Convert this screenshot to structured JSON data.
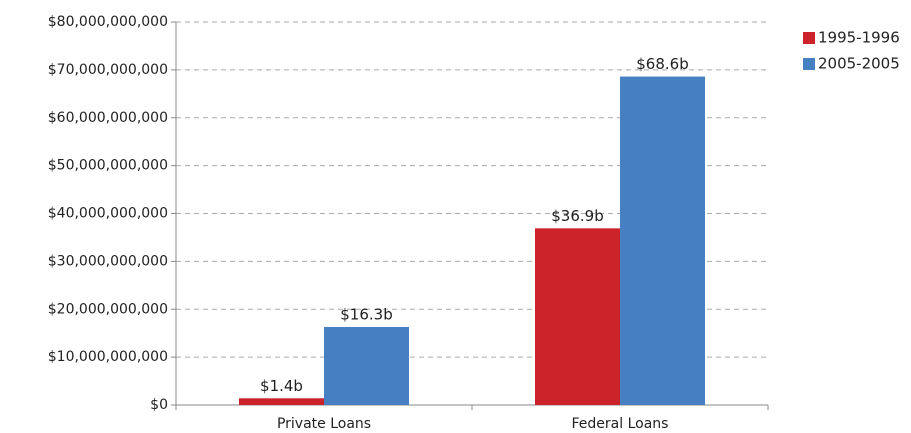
{
  "chart_data": {
    "type": "bar",
    "categories": [
      "Private Loans",
      "Federal Loans"
    ],
    "series": [
      {
        "name": "1995-1996",
        "color": "#cc2229",
        "values": [
          1400000000,
          36900000000
        ],
        "value_labels": [
          "$1.4b",
          "$36.9b"
        ]
      },
      {
        "name": "2005-2005",
        "color": "#4680c3",
        "values": [
          16300000000,
          68600000000
        ],
        "value_labels": [
          "$16.3b",
          "$68.6b"
        ]
      }
    ],
    "ylim": [
      0,
      80000000000
    ],
    "yticks": [
      {
        "value": 0,
        "label": "$0"
      },
      {
        "value": 10000000000,
        "label": "$10,000,000,000"
      },
      {
        "value": 20000000000,
        "label": "$20,000,000,000"
      },
      {
        "value": 30000000000,
        "label": "$30,000,000,000"
      },
      {
        "value": 40000000000,
        "label": "$40,000,000,000"
      },
      {
        "value": 50000000000,
        "label": "$50,000,000,000"
      },
      {
        "value": 60000000000,
        "label": "$60,000,000,000"
      },
      {
        "value": 70000000000,
        "label": "$70,000,000,000"
      },
      {
        "value": 80000000000,
        "label": "$80,000,000,000"
      }
    ],
    "grid": true,
    "legend": "top-right"
  }
}
